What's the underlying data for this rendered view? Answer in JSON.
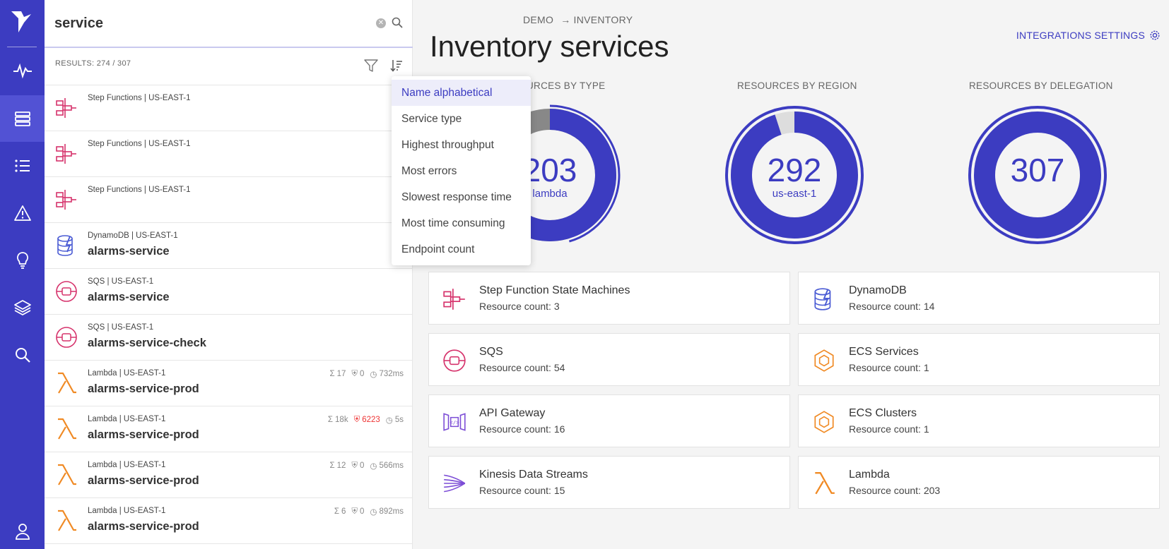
{
  "search": {
    "value": "service"
  },
  "results": {
    "label": "RESULTS: 274 / 307"
  },
  "list": [
    {
      "meta": "Step Functions | US-EAST-1",
      "name": "",
      "icon": "step-functions-icon"
    },
    {
      "meta": "Step Functions | US-EAST-1",
      "name": "",
      "icon": "step-functions-icon"
    },
    {
      "meta": "Step Functions | US-EAST-1",
      "name": "",
      "icon": "step-functions-icon"
    },
    {
      "meta": "DynamoDB | US-EAST-1",
      "name": "alarms-service",
      "icon": "dynamodb-icon"
    },
    {
      "meta": "SQS | US-EAST-1",
      "name": "alarms-service",
      "icon": "sqs-icon"
    },
    {
      "meta": "SQS | US-EAST-1",
      "name": "alarms-service-check",
      "icon": "sqs-icon"
    },
    {
      "meta": "Lambda | US-EAST-1",
      "name": "alarms-service-prod",
      "icon": "lambda-icon",
      "invocations": "17",
      "errors": "0",
      "duration": "732ms"
    },
    {
      "meta": "Lambda | US-EAST-1",
      "name": "alarms-service-prod",
      "icon": "lambda-icon",
      "invocations": "18k",
      "errors": "6223",
      "duration": "5s"
    },
    {
      "meta": "Lambda | US-EAST-1",
      "name": "alarms-service-prod",
      "icon": "lambda-icon",
      "invocations": "12",
      "errors": "0",
      "duration": "566ms"
    },
    {
      "meta": "Lambda | US-EAST-1",
      "name": "alarms-service-prod",
      "icon": "lambda-icon",
      "invocations": "6",
      "errors": "0",
      "duration": "892ms"
    }
  ],
  "sort_menu": {
    "items": [
      "Name alphabetical",
      "Service type",
      "Highest throughput",
      "Most errors",
      "Slowest response time",
      "Most time consuming",
      "Endpoint count"
    ],
    "selected": "Name alphabetical"
  },
  "breadcrumb": {
    "root": "DEMO",
    "arrow": "→",
    "current": "INVENTORY"
  },
  "page_title": "Inventory services",
  "integrations_label": "INTEGRATIONS SETTINGS",
  "donuts": [
    {
      "label": "RESOURCES BY TYPE",
      "label_visible": "URCES BY TYPE",
      "value": "203",
      "sub": "lambda",
      "fraction": 0.66
    },
    {
      "label": "RESOURCES BY REGION",
      "value": "292",
      "sub": "us-east-1",
      "fraction": 0.95
    },
    {
      "label": "RESOURCES BY DELEGATION",
      "value": "307",
      "sub": "",
      "fraction": 1.0
    }
  ],
  "services": [
    {
      "title": "Step Function State Machines",
      "count": "Resource count: 3",
      "icon": "step-functions-icon"
    },
    {
      "title": "DynamoDB",
      "count": "Resource count: 14",
      "icon": "dynamodb-icon"
    },
    {
      "title": "SQS",
      "count": "Resource count: 54",
      "icon": "sqs-icon"
    },
    {
      "title": "ECS Services",
      "count": "Resource count: 1",
      "icon": "ecs-icon"
    },
    {
      "title": "API Gateway",
      "count": "Resource count: 16",
      "icon": "api-gateway-icon"
    },
    {
      "title": "ECS Clusters",
      "count": "Resource count: 1",
      "icon": "ecs-icon"
    },
    {
      "title": "Kinesis Data Streams",
      "count": "Resource count: 15",
      "icon": "kinesis-icon"
    },
    {
      "title": "Lambda",
      "count": "Resource count: 203",
      "icon": "lambda-icon"
    }
  ],
  "colors": {
    "accent": "#3c3cc1",
    "rail": "#3c3cc1",
    "error": "#e33333",
    "lambda": "#f08a24",
    "step": "#d6336c",
    "dynamo": "#4a5bd4"
  }
}
